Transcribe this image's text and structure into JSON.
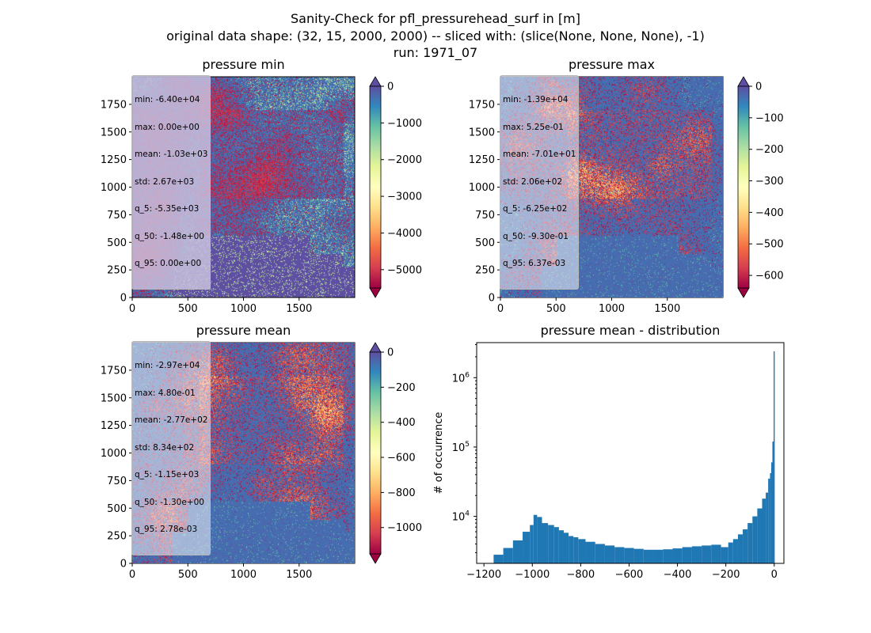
{
  "title_lines": [
    "Sanity-Check for pfl_pressurehead_surf in [m]",
    "original data shape: (32, 15, 2000, 2000) -- sliced with: (slice(None, None, None), -1)",
    "run: 1971_07"
  ],
  "colors": {
    "spectral": [
      "#9e0142",
      "#d53e4f",
      "#f46d43",
      "#fdae61",
      "#fee08b",
      "#ffffbf",
      "#e6f598",
      "#abdda4",
      "#66c2a5",
      "#3288bd",
      "#5e4fa2"
    ],
    "hist_bar": "#1f77b4",
    "stat_box_min": "#c8c0de"
  },
  "panels": [
    {
      "title": "pressure min",
      "xticks": [
        0,
        500,
        1000,
        1500
      ],
      "yticks": [
        0,
        250,
        500,
        750,
        1000,
        1250,
        1500,
        1750
      ],
      "cbar_ticks": [
        "0",
        "−1000",
        "−2000",
        "−3000",
        "−4000",
        "−5000"
      ],
      "cbar_range": [
        -5500,
        0
      ],
      "cbar_tick_values": [
        0,
        -1000,
        -2000,
        -3000,
        -4000,
        -5000
      ],
      "stats": [
        "min: -6.40e+04",
        "max: 0.00e+00",
        "mean: -1.03e+03",
        "std: 2.67e+03",
        "q_5: -5.35e+03",
        "q_50: -1.48e+00",
        "q_95: 0.00e+00"
      ]
    },
    {
      "title": "pressure max",
      "xticks": [
        0,
        500,
        1000,
        1500
      ],
      "yticks": [
        0,
        250,
        500,
        750,
        1000,
        1250,
        1500,
        1750
      ],
      "cbar_ticks": [
        "0",
        "−100",
        "−200",
        "−300",
        "−400",
        "−500",
        "−600"
      ],
      "cbar_range": [
        -640,
        0
      ],
      "cbar_tick_values": [
        0,
        -100,
        -200,
        -300,
        -400,
        -500,
        -600
      ],
      "stats": [
        "min: -1.39e+04",
        "max: 5.25e-01",
        "mean: -7.01e+01",
        "std: 2.06e+02",
        "q_5: -6.25e+02",
        "q_50: -9.30e-01",
        "q_95: 6.37e-03"
      ]
    },
    {
      "title": "pressure mean",
      "xticks": [
        0,
        500,
        1000,
        1500
      ],
      "yticks": [
        0,
        250,
        500,
        750,
        1000,
        1250,
        1500,
        1750
      ],
      "cbar_ticks": [
        "0",
        "−200",
        "−400",
        "−600",
        "−800",
        "−1000"
      ],
      "cbar_range": [
        -1150,
        0
      ],
      "cbar_tick_values": [
        0,
        -200,
        -400,
        -600,
        -800,
        -1000
      ],
      "stats": [
        "min: -2.97e+04",
        "max: 4.80e-01",
        "mean: -2.77e+02",
        "std: 8.34e+02",
        "q_5: -1.15e+03",
        "q_50: -1.30e+00",
        "q_95: 2.78e-03"
      ]
    }
  ],
  "chart_data": {
    "type": "bar",
    "title": "pressure mean - distribution",
    "xlabel": "",
    "ylabel": "# of occurrence",
    "yscale": "log",
    "xlim": [
      -1230,
      40
    ],
    "ylim": [
      2100,
      3200000
    ],
    "xticks": [
      -1200,
      -1000,
      -800,
      -600,
      -400,
      -200,
      0
    ],
    "xtick_labels": [
      "−1200",
      "−1000",
      "−800",
      "−600",
      "−400",
      "−200",
      "0"
    ],
    "yticks": [
      10000,
      100000,
      1000000
    ],
    "ytick_labels": [
      "10^4",
      "10^5",
      "10^6"
    ],
    "bin_centers": [
      -1140,
      -1100,
      -1060,
      -1020,
      -1000,
      -990,
      -970,
      -950,
      -920,
      -900,
      -880,
      -860,
      -840,
      -820,
      -800,
      -760,
      -720,
      -680,
      -640,
      -600,
      -560,
      -520,
      -480,
      -440,
      -400,
      -360,
      -320,
      -280,
      -240,
      -200,
      -180,
      -160,
      -140,
      -120,
      -100,
      -80,
      -60,
      -40,
      -30,
      -20,
      -15,
      -10,
      -5,
      0
    ],
    "counts": [
      2800,
      3500,
      4500,
      6000,
      7500,
      10500,
      9800,
      8000,
      7500,
      7000,
      6300,
      5800,
      5200,
      5000,
      4700,
      4300,
      4000,
      3800,
      3600,
      3500,
      3400,
      3300,
      3300,
      3350,
      3450,
      3600,
      3700,
      3800,
      3900,
      3600,
      4200,
      4700,
      5500,
      6500,
      8000,
      10000,
      13000,
      18000,
      22000,
      35000,
      42000,
      60000,
      120000,
      2400000
    ]
  }
}
